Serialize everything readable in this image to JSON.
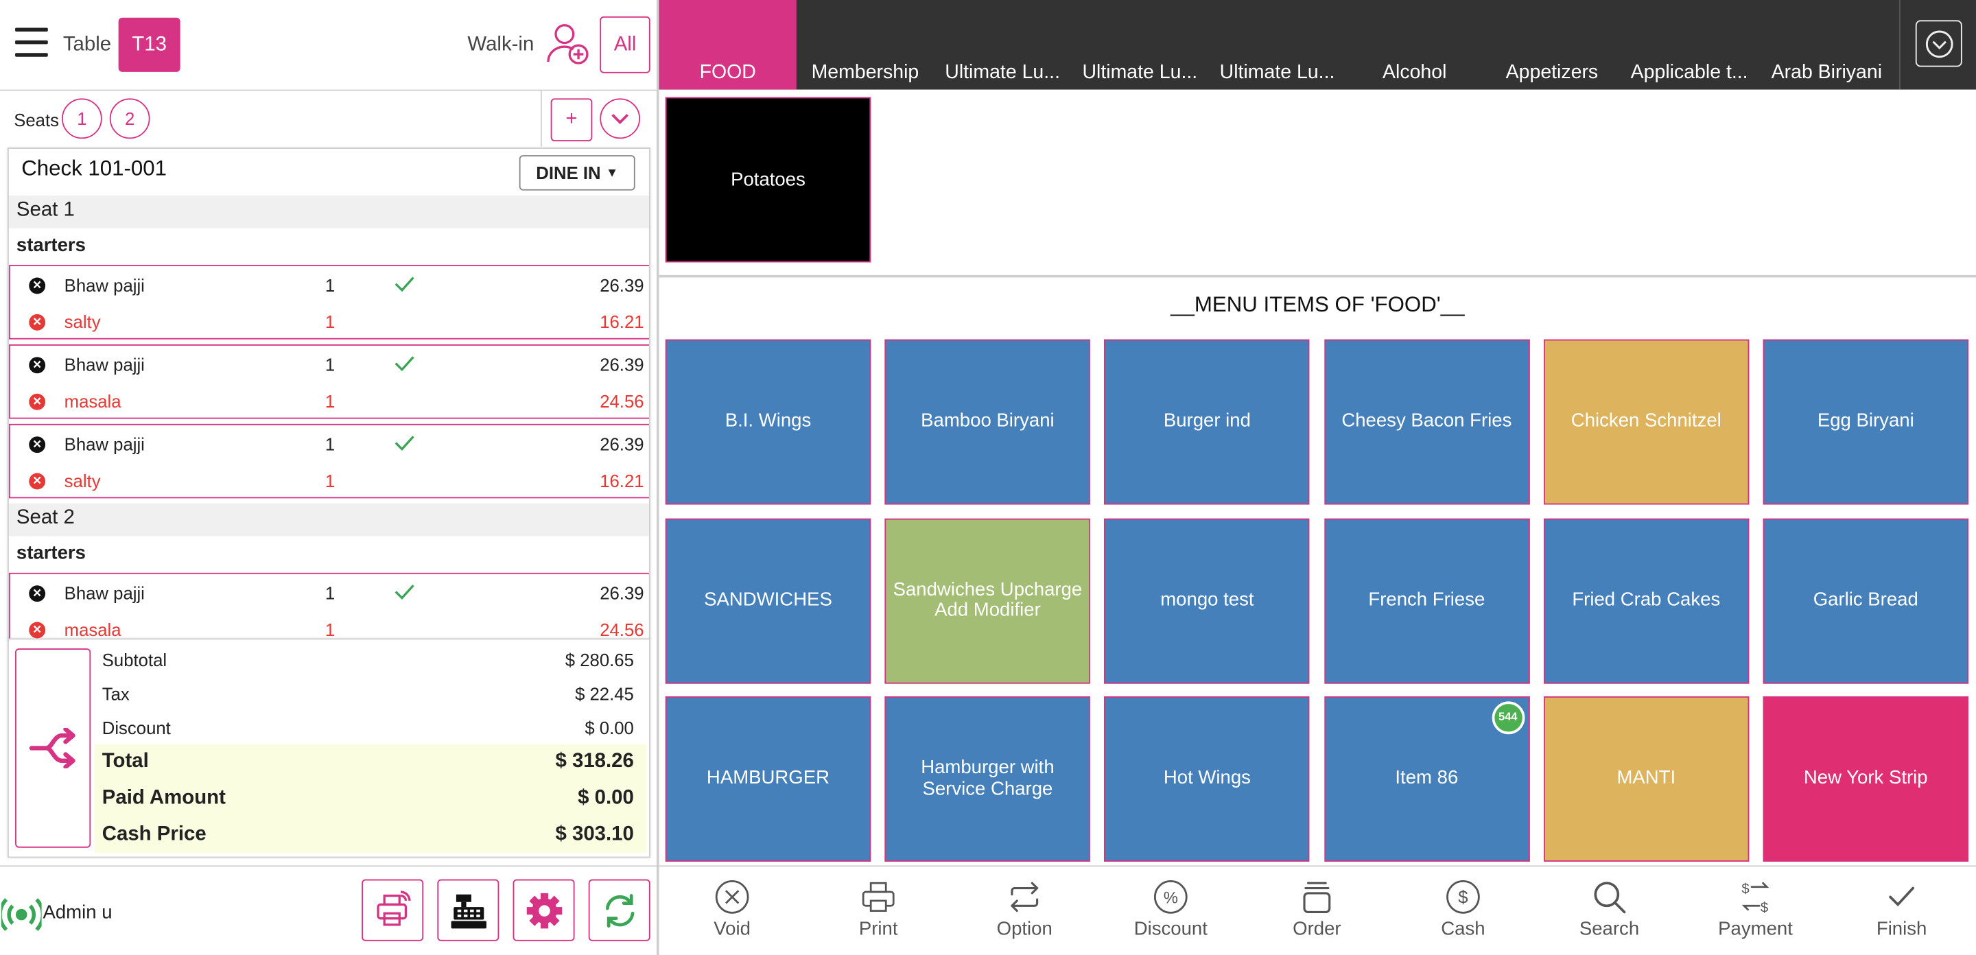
{
  "header": {
    "table_label": "Table",
    "table_value": "T13",
    "walkin_label": "Walk-in",
    "all_label": "All"
  },
  "seats": {
    "label": "Seats",
    "items": [
      "1",
      "2"
    ],
    "add_label": "+"
  },
  "check": {
    "title": "Check 101-001",
    "order_type": "DINE IN",
    "seat1": {
      "label": "Seat 1",
      "category": "starters"
    },
    "seat2": {
      "label": "Seat 2",
      "category": "starters"
    },
    "items": [
      {
        "name": "Bhaw pajji",
        "qty": "1",
        "price": "26.39",
        "mod_name": "salty",
        "mod_qty": "1",
        "mod_price": "16.21"
      },
      {
        "name": "Bhaw pajji",
        "qty": "1",
        "price": "26.39",
        "mod_name": "masala",
        "mod_qty": "1",
        "mod_price": "24.56"
      },
      {
        "name": "Bhaw pajji",
        "qty": "1",
        "price": "26.39",
        "mod_name": "salty",
        "mod_qty": "1",
        "mod_price": "16.21"
      },
      {
        "name": "Bhaw pajji",
        "qty": "1",
        "price": "26.39",
        "mod_name": "masala",
        "mod_qty": "1",
        "mod_price": "24.56"
      }
    ]
  },
  "totals": {
    "subtotal_label": "Subtotal",
    "subtotal": "$ 280.65",
    "tax_label": "Tax",
    "tax": "$ 22.45",
    "discount_label": "Discount",
    "discount": "$ 0.00",
    "total_label": "Total",
    "total": "$ 318.26",
    "paid_label": "Paid Amount",
    "paid": "$ 0.00",
    "cash_label": "Cash Price",
    "cash": "$ 303.10"
  },
  "footer": {
    "user": "Admin u"
  },
  "categories": [
    "FOOD",
    "Membership",
    "Ultimate Lu...",
    "Ultimate Lu...",
    "Ultimate Lu...",
    "Alcohol",
    "Appetizers",
    "Applicable t...",
    "Arab Biriyani"
  ],
  "subcategory": {
    "label": "Potatoes"
  },
  "menu_title": "__MENU ITEMS OF 'FOOD'__",
  "menu_items": [
    {
      "label": "B.I. Wings",
      "color": "#4580bb"
    },
    {
      "label": "Bamboo Biryani",
      "color": "#4580bb"
    },
    {
      "label": "Burger ind",
      "color": "#4580bb"
    },
    {
      "label": "Cheesy Bacon Fries",
      "color": "#4580bb"
    },
    {
      "label": "Chicken Schnitzel",
      "color": "#ddb35d"
    },
    {
      "label": "Egg Biryani",
      "color": "#4580bb"
    },
    {
      "label": "SANDWICHES",
      "color": "#4580bb"
    },
    {
      "label": "Sandwiches Upcharge Add Modifier",
      "color": "#a3bd75"
    },
    {
      "label": "mongo test",
      "color": "#4580bb"
    },
    {
      "label": "French Friese",
      "color": "#4580bb"
    },
    {
      "label": "Fried Crab Cakes",
      "color": "#4580bb"
    },
    {
      "label": "Garlic Bread",
      "color": "#4580bb"
    },
    {
      "label": "HAMBURGER",
      "color": "#4580bb"
    },
    {
      "label": "Hamburger with Service Charge",
      "color": "#4580bb"
    },
    {
      "label": "Hot Wings",
      "color": "#4580bb"
    },
    {
      "label": "Item 86",
      "color": "#4580bb",
      "badge": "544"
    },
    {
      "label": "MANTI",
      "color": "#ddb35d"
    },
    {
      "label": "New York Strip",
      "color": "#e02e73"
    }
  ],
  "actions": [
    "Void",
    "Print",
    "Option",
    "Discount",
    "Order",
    "Cash",
    "Search",
    "Payment",
    "Finish"
  ],
  "colors": {
    "accent": "#d63384",
    "dark_bar": "#333333",
    "tile_blue": "#4580bb",
    "error_red": "#e53935"
  }
}
